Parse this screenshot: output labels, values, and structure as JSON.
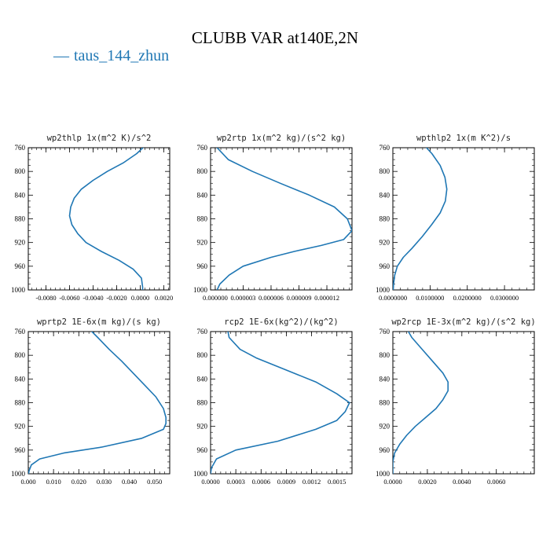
{
  "title": "CLUBB VAR at140E,2N",
  "legend": {
    "label": "taus_144_zhun",
    "color": "#1f77b4"
  },
  "chart_data": [
    {
      "type": "line",
      "title": "wp2thlp  1x(m^2 K)/s^2",
      "ylim": [
        760,
        1000
      ],
      "yinvert": true,
      "yticks": [
        "760",
        "800",
        "840",
        "880",
        "920",
        "960",
        "1000"
      ],
      "xlim": [
        -0.0095,
        0.0025
      ],
      "xticks": [
        [
          -0.008,
          "-0.0080"
        ],
        [
          -0.006,
          "-0.0060"
        ],
        [
          -0.004,
          "-0.0040"
        ],
        [
          -0.002,
          "-0.0020"
        ],
        [
          0.0,
          "0.0000"
        ],
        [
          0.002,
          "0.0020"
        ]
      ],
      "series": [
        {
          "y": [
            755,
            770,
            785,
            800,
            815,
            830,
            845,
            860,
            875,
            890,
            905,
            920,
            935,
            950,
            965,
            980,
            995,
            1000
          ],
          "x": [
            0.0005,
            -0.0003,
            -0.0014,
            -0.0028,
            -0.004,
            -0.005,
            -0.0056,
            -0.0059,
            -0.006,
            -0.0058,
            -0.0053,
            -0.0046,
            -0.0033,
            -0.0018,
            -0.0006,
            0.0001,
            0.0002,
            0.0002
          ]
        }
      ]
    },
    {
      "type": "line",
      "title": "wp2rtp  1x(m^2 kg)/(s^2 kg)",
      "ylim": [
        760,
        1000
      ],
      "yinvert": true,
      "yticks": [
        "760",
        "800",
        "840",
        "880",
        "920",
        "960",
        "1000"
      ],
      "xlim": [
        -5e-07,
        1.47e-05
      ],
      "xticks": [
        [
          0.0,
          "0.000000"
        ],
        [
          3e-06,
          "0.000003"
        ],
        [
          6e-06,
          "0.000006"
        ],
        [
          9e-06,
          "0.000009"
        ],
        [
          1.2e-05,
          "0.000012"
        ]
      ],
      "series": [
        {
          "y": [
            755,
            760,
            780,
            800,
            820,
            840,
            860,
            880,
            900,
            915,
            925,
            935,
            945,
            960,
            975,
            990,
            1000
          ],
          "x": [
            0.0,
            2e-07,
            1.4e-06,
            4e-06,
            7e-06,
            1.01e-05,
            1.28e-05,
            1.42e-05,
            1.47e-05,
            1.38e-05,
            1.14e-05,
            8.5e-06,
            6e-06,
            3e-06,
            1.5e-06,
            5e-07,
            2e-07
          ]
        }
      ]
    },
    {
      "type": "line",
      "title": "wpthlp2  1x(m K^2)/s",
      "ylim": [
        760,
        1000
      ],
      "yinvert": true,
      "yticks": [
        "760",
        "800",
        "840",
        "880",
        "920",
        "960",
        "1000"
      ],
      "xlim": [
        0.0,
        0.038
      ],
      "xticks": [
        [
          0.0,
          "0.0000000"
        ],
        [
          0.01,
          "0.0100000"
        ],
        [
          0.02,
          "0.0200000"
        ],
        [
          0.03,
          "0.0300000"
        ]
      ],
      "series": [
        {
          "y": [
            755,
            770,
            790,
            810,
            830,
            850,
            870,
            890,
            910,
            930,
            945,
            960,
            975,
            990,
            1000
          ],
          "x": [
            0.0083,
            0.0105,
            0.0127,
            0.014,
            0.0145,
            0.0141,
            0.0127,
            0.0104,
            0.0079,
            0.0051,
            0.0028,
            0.0012,
            0.0005,
            0.0002,
            0.0001
          ]
        }
      ]
    },
    {
      "type": "line",
      "title": "wprtp2  1E-6x(m kg)/(s kg)",
      "ylim": [
        760,
        1000
      ],
      "yinvert": true,
      "yticks": [
        "760",
        "800",
        "840",
        "880",
        "920",
        "960",
        "1000"
      ],
      "xlim": [
        0.0,
        0.056
      ],
      "xticks": [
        [
          0.0,
          "0.000"
        ],
        [
          0.01,
          "0.010"
        ],
        [
          0.02,
          "0.020"
        ],
        [
          0.03,
          "0.030"
        ],
        [
          0.04,
          "0.040"
        ],
        [
          0.05,
          "0.050"
        ]
      ],
      "series": [
        {
          "y": [
            755,
            770,
            790,
            810,
            830,
            850,
            870,
            890,
            905,
            915,
            925,
            940,
            955,
            965,
            975,
            985,
            995,
            1000
          ],
          "x": [
            0.024,
            0.0275,
            0.032,
            0.037,
            0.0415,
            0.046,
            0.0505,
            0.0535,
            0.0545,
            0.0545,
            0.0535,
            0.045,
            0.029,
            0.014,
            0.0045,
            0.0012,
            0.0003,
            0.0001
          ]
        }
      ]
    },
    {
      "type": "line",
      "title": "rcp2  1E-6x(kg^2)/(kg^2)",
      "ylim": [
        760,
        1000
      ],
      "yinvert": true,
      "yticks": [
        "760",
        "800",
        "840",
        "880",
        "920",
        "960",
        "1000"
      ],
      "xlim": [
        0.0,
        0.00168
      ],
      "xticks": [
        [
          0.0,
          "0.0000"
        ],
        [
          0.0003,
          "0.0003"
        ],
        [
          0.0006,
          "0.0006"
        ],
        [
          0.0009,
          "0.0009"
        ],
        [
          0.0012,
          "0.0012"
        ],
        [
          0.0015,
          "0.0015"
        ]
      ],
      "series": [
        {
          "y": [
            755,
            770,
            790,
            805,
            825,
            845,
            865,
            880,
            895,
            910,
            925,
            945,
            960,
            975,
            990,
            1000
          ],
          "x": [
            0.0002,
            0.00022,
            0.00035,
            0.00055,
            0.0009,
            0.00125,
            0.0015,
            0.00165,
            0.0016,
            0.0015,
            0.00125,
            0.0008,
            0.0003,
            7e-05,
            1e-05,
            0.0
          ]
        }
      ]
    },
    {
      "type": "line",
      "title": "wp2rcp  1E-3x(m^2 kg)/(s^2 kg)",
      "ylim": [
        760,
        1000
      ],
      "yinvert": true,
      "yticks": [
        "760",
        "800",
        "840",
        "880",
        "920",
        "960",
        "1000"
      ],
      "xlim": [
        0.0,
        0.0082
      ],
      "xticks": [
        [
          0.0,
          "0.0000"
        ],
        [
          0.002,
          "0.0020"
        ],
        [
          0.004,
          "0.0040"
        ],
        [
          0.006,
          "0.0060"
        ]
      ],
      "series": [
        {
          "y": [
            755,
            770,
            790,
            810,
            830,
            845,
            860,
            875,
            890,
            905,
            920,
            935,
            950,
            965,
            980,
            995,
            1000
          ],
          "x": [
            0.0008,
            0.0011,
            0.0017,
            0.0023,
            0.0029,
            0.0032,
            0.0032,
            0.0029,
            0.0025,
            0.0019,
            0.0013,
            0.0008,
            0.0004,
            0.0001,
            0.0,
            0.0,
            0.0
          ]
        }
      ]
    }
  ]
}
